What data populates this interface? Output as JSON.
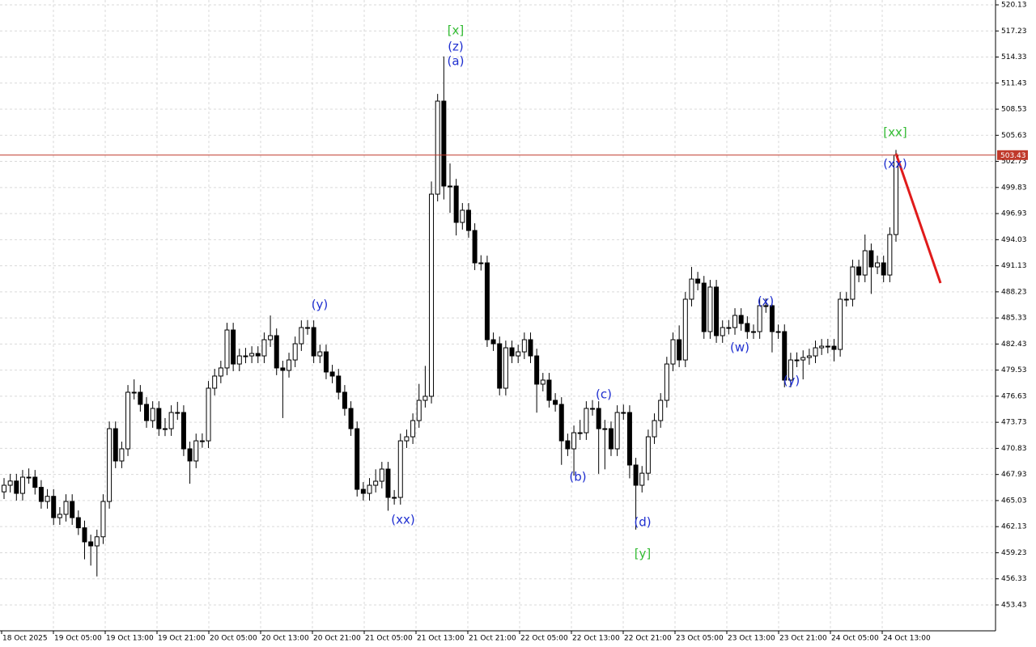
{
  "chart_data": {
    "type": "candlestick",
    "ylim": [
      450.55,
      520.67
    ],
    "yticks": [
      520.13,
      517.23,
      514.33,
      511.43,
      508.53,
      505.63,
      502.73,
      499.83,
      496.93,
      494.03,
      491.13,
      488.23,
      485.33,
      482.43,
      479.53,
      476.63,
      473.73,
      470.83,
      467.93,
      465.03,
      462.13,
      459.23,
      456.33,
      453.43
    ],
    "xticks": [
      "18 Oct 2025",
      "19 Oct 05:00",
      "19 Oct 13:00",
      "19 Oct 21:00",
      "20 Oct 05:00",
      "20 Oct 13:00",
      "20 Oct 21:00",
      "21 Oct 05:00",
      "21 Oct 13:00",
      "21 Oct 21:00",
      "22 Oct 05:00",
      "22 Oct 13:00",
      "22 Oct 21:00",
      "23 Oct 05:00",
      "23 Oct 13:00",
      "23 Oct 21:00",
      "24 Oct 05:00",
      "24 Oct 13:00"
    ],
    "grid": true,
    "up_color": "#ffffff",
    "down_color": "#000000",
    "current_price": 503.43,
    "current_price_color": "#c0392b",
    "annotations": [
      {
        "text": "[x]",
        "color": "#33bb33"
      },
      {
        "text": "(z)",
        "color": "#1f2fd0"
      },
      {
        "text": "(a)",
        "color": "#1f2fd0"
      },
      {
        "text": "(y)",
        "color": "#1f2fd0"
      },
      {
        "text": "(xx)",
        "color": "#1f2fd0"
      },
      {
        "text": "(b)",
        "color": "#1f2fd0"
      },
      {
        "text": "(c)",
        "color": "#1f2fd0"
      },
      {
        "text": "(d)",
        "color": "#1f2fd0"
      },
      {
        "text": "[y]",
        "color": "#33bb33"
      },
      {
        "text": "(w)",
        "color": "#1f2fd0"
      },
      {
        "text": "(x)",
        "color": "#1f2fd0"
      },
      {
        "text": "(y)",
        "color": "#1f2fd0"
      },
      {
        "text": "[xx]",
        "color": "#33bb33"
      },
      {
        "text": "(xx)",
        "color": "#1f2fd0"
      }
    ],
    "candles": [
      [
        466.0,
        467.53,
        465.2,
        466.73
      ],
      [
        466.73,
        468.0,
        465.93,
        467.2
      ],
      [
        467.2,
        468.0,
        465.03,
        465.83
      ],
      [
        465.83,
        468.43,
        465.03,
        467.63
      ],
      [
        467.63,
        468.6,
        466.9,
        467.63
      ],
      [
        467.63,
        468.43,
        465.7,
        466.5
      ],
      [
        466.5,
        467.3,
        464.13,
        464.93
      ],
      [
        464.93,
        466.3,
        464.13,
        465.5
      ],
      [
        465.5,
        466.3,
        462.33,
        463.13
      ],
      [
        463.13,
        464.3,
        462.33,
        463.5
      ],
      [
        463.5,
        465.73,
        462.7,
        464.93
      ],
      [
        464.93,
        465.73,
        462.33,
        463.13
      ],
      [
        463.13,
        463.93,
        461.2,
        462.0
      ],
      [
        462.0,
        462.8,
        458.5,
        460.44
      ],
      [
        460.44,
        461.24,
        457.8,
        459.99
      ],
      [
        459.99,
        461.8,
        456.6,
        461.0
      ],
      [
        461.0,
        465.73,
        460.2,
        464.93
      ],
      [
        464.93,
        473.82,
        464.13,
        473.02
      ],
      [
        473.02,
        473.82,
        468.63,
        469.43
      ],
      [
        469.43,
        471.58,
        468.63,
        470.78
      ],
      [
        470.78,
        477.87,
        469.98,
        477.07
      ],
      [
        477.07,
        478.5,
        476.27,
        477.07
      ],
      [
        477.07,
        477.87,
        474.92,
        475.72
      ],
      [
        475.72,
        476.52,
        473.12,
        473.92
      ],
      [
        473.92,
        476.07,
        473.12,
        475.27
      ],
      [
        475.27,
        476.07,
        472.22,
        473.02
      ],
      [
        473.02,
        474.2,
        472.2,
        473.02
      ],
      [
        473.02,
        475.62,
        472.22,
        474.82
      ],
      [
        474.82,
        476.0,
        474.0,
        474.82
      ],
      [
        474.82,
        475.62,
        469.98,
        470.78
      ],
      [
        470.78,
        471.58,
        466.9,
        469.43
      ],
      [
        469.43,
        472.47,
        468.63,
        471.67
      ],
      [
        471.67,
        472.5,
        470.9,
        471.67
      ],
      [
        471.67,
        478.32,
        470.87,
        477.52
      ],
      [
        477.52,
        479.67,
        476.72,
        478.87
      ],
      [
        478.87,
        480.57,
        478.07,
        479.77
      ],
      [
        479.77,
        484.79,
        478.97,
        483.99
      ],
      [
        483.99,
        484.79,
        479.41,
        480.21
      ],
      [
        480.21,
        481.91,
        479.41,
        481.11
      ],
      [
        481.11,
        482.0,
        480.3,
        481.11
      ],
      [
        481.11,
        482.18,
        480.31,
        481.38
      ],
      [
        481.38,
        482.18,
        480.31,
        481.11
      ],
      [
        481.11,
        483.71,
        480.31,
        482.91
      ],
      [
        482.91,
        485.6,
        482.11,
        483.36
      ],
      [
        483.36,
        484.16,
        478.97,
        479.77
      ],
      [
        479.77,
        480.57,
        474.2,
        479.5
      ],
      [
        479.5,
        481.46,
        478.7,
        480.66
      ],
      [
        480.66,
        483.26,
        479.86,
        482.46
      ],
      [
        482.46,
        485.06,
        481.66,
        484.26
      ],
      [
        484.26,
        485.1,
        483.46,
        484.26
      ],
      [
        484.26,
        485.06,
        480.31,
        481.11
      ],
      [
        481.11,
        482.36,
        480.31,
        481.56
      ],
      [
        481.56,
        482.36,
        478.52,
        479.32
      ],
      [
        479.32,
        480.12,
        478.07,
        478.87
      ],
      [
        478.87,
        479.67,
        476.27,
        477.07
      ],
      [
        477.07,
        477.87,
        474.47,
        475.27
      ],
      [
        475.27,
        476.07,
        472.22,
        473.02
      ],
      [
        473.02,
        473.82,
        465.48,
        466.28
      ],
      [
        466.28,
        467.08,
        465.03,
        465.83
      ],
      [
        465.83,
        467.53,
        465.03,
        466.73
      ],
      [
        466.73,
        468.5,
        465.93,
        467.18
      ],
      [
        467.18,
        469.33,
        466.38,
        468.53
      ],
      [
        468.53,
        469.33,
        463.9,
        465.38
      ],
      [
        465.38,
        466.2,
        464.58,
        465.38
      ],
      [
        465.38,
        472.47,
        464.58,
        471.67
      ],
      [
        471.67,
        472.92,
        470.87,
        472.12
      ],
      [
        472.12,
        474.72,
        471.32,
        473.92
      ],
      [
        473.92,
        478.0,
        473.12,
        476.17
      ],
      [
        476.17,
        480.0,
        475.37,
        476.62
      ],
      [
        476.62,
        500.5,
        475.82,
        499.09
      ],
      [
        499.09,
        510.23,
        498.29,
        509.43
      ],
      [
        509.43,
        514.4,
        498.5,
        499.99
      ],
      [
        499.99,
        502.5,
        497.0,
        499.99
      ],
      [
        499.99,
        500.79,
        494.5,
        495.95
      ],
      [
        495.95,
        498.1,
        495.15,
        497.3
      ],
      [
        497.3,
        498.1,
        494.25,
        495.05
      ],
      [
        495.05,
        495.85,
        490.65,
        491.45
      ],
      [
        491.45,
        492.3,
        490.6,
        491.45
      ],
      [
        491.45,
        492.25,
        482.11,
        482.91
      ],
      [
        482.91,
        483.71,
        481.66,
        482.46
      ],
      [
        482.46,
        483.26,
        476.72,
        477.52
      ],
      [
        477.52,
        482.81,
        476.72,
        482.01
      ],
      [
        482.01,
        482.81,
        480.31,
        481.11
      ],
      [
        481.11,
        482.36,
        480.31,
        481.56
      ],
      [
        481.56,
        483.71,
        480.76,
        482.91
      ],
      [
        482.91,
        483.71,
        480.31,
        481.11
      ],
      [
        481.11,
        481.91,
        474.8,
        477.97
      ],
      [
        477.97,
        479.22,
        477.17,
        478.42
      ],
      [
        478.42,
        479.22,
        475.37,
        476.17
      ],
      [
        476.17,
        476.97,
        474.92,
        475.72
      ],
      [
        475.72,
        476.52,
        469.0,
        471.67
      ],
      [
        471.67,
        472.47,
        469.98,
        470.78
      ],
      [
        470.78,
        473.37,
        467.8,
        472.57
      ],
      [
        472.57,
        474.0,
        471.77,
        472.57
      ],
      [
        472.57,
        476.07,
        471.77,
        475.27
      ],
      [
        475.27,
        476.2,
        474.47,
        475.27
      ],
      [
        475.27,
        476.07,
        468.0,
        473.02
      ],
      [
        473.02,
        474.0,
        468.5,
        473.02
      ],
      [
        473.02,
        473.82,
        469.98,
        470.78
      ],
      [
        470.78,
        475.62,
        469.98,
        474.82
      ],
      [
        474.82,
        475.7,
        474.0,
        474.82
      ],
      [
        474.82,
        475.62,
        467.5,
        468.98
      ],
      [
        468.98,
        469.78,
        461.8,
        466.73
      ],
      [
        466.73,
        468.87,
        465.93,
        468.07
      ],
      [
        468.07,
        472.92,
        467.27,
        472.12
      ],
      [
        472.12,
        474.72,
        471.32,
        473.92
      ],
      [
        473.92,
        476.97,
        473.12,
        476.17
      ],
      [
        476.17,
        481.01,
        475.37,
        480.21
      ],
      [
        480.21,
        483.71,
        479.41,
        482.91
      ],
      [
        482.91,
        484.5,
        479.86,
        480.66
      ],
      [
        480.66,
        488.21,
        479.86,
        487.41
      ],
      [
        487.41,
        491.0,
        486.61,
        489.65
      ],
      [
        489.65,
        490.45,
        488.4,
        489.2
      ],
      [
        489.2,
        490.0,
        483.01,
        483.81
      ],
      [
        483.81,
        489.56,
        483.01,
        488.76
      ],
      [
        488.76,
        489.56,
        482.56,
        483.36
      ],
      [
        483.36,
        485.06,
        482.56,
        484.26
      ],
      [
        484.26,
        485.1,
        483.5,
        484.26
      ],
      [
        484.26,
        486.41,
        483.46,
        485.61
      ],
      [
        485.61,
        486.41,
        483.91,
        484.71
      ],
      [
        484.71,
        485.51,
        483.01,
        483.81
      ],
      [
        483.81,
        484.6,
        483.0,
        483.81
      ],
      [
        483.81,
        487.49,
        483.01,
        486.69
      ],
      [
        486.69,
        487.5,
        485.9,
        486.69
      ],
      [
        486.69,
        487.49,
        481.5,
        483.81
      ],
      [
        483.81,
        484.6,
        483.0,
        483.81
      ],
      [
        483.81,
        484.61,
        477.62,
        478.42
      ],
      [
        478.42,
        481.46,
        477.62,
        480.66
      ],
      [
        480.66,
        481.5,
        479.86,
        480.66
      ],
      [
        480.66,
        481.73,
        478.5,
        480.93
      ],
      [
        480.93,
        481.91,
        480.13,
        481.11
      ],
      [
        481.11,
        482.81,
        480.31,
        482.01
      ],
      [
        482.01,
        482.99,
        481.21,
        482.19
      ],
      [
        482.19,
        483.0,
        481.4,
        482.19
      ],
      [
        482.19,
        482.99,
        480.5,
        481.83
      ],
      [
        481.83,
        488.21,
        481.03,
        487.41
      ],
      [
        487.41,
        488.2,
        486.6,
        487.41
      ],
      [
        487.41,
        491.8,
        486.61,
        491.0
      ],
      [
        491.0,
        491.8,
        489.3,
        490.1
      ],
      [
        490.1,
        494.6,
        489.3,
        492.8
      ],
      [
        492.8,
        493.6,
        488.0,
        491.0
      ],
      [
        491.0,
        492.25,
        490.2,
        491.45
      ],
      [
        491.45,
        492.25,
        489.3,
        490.1
      ],
      [
        490.1,
        495.4,
        489.3,
        494.6
      ],
      [
        494.6,
        504.0,
        493.8,
        503.43
      ]
    ]
  }
}
